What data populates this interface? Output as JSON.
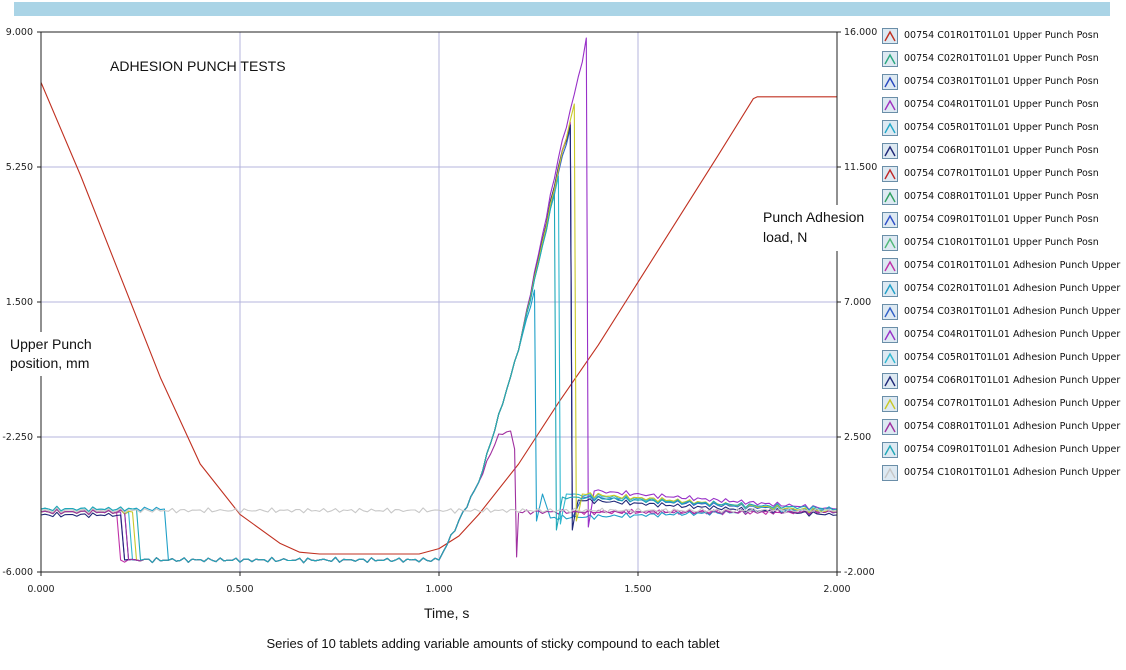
{
  "chart_data": {
    "type": "line",
    "title": "ADHESION PUNCH TESTS",
    "xlabel": "Time, s",
    "ylabel_left": "Upper Punch position, mm",
    "ylabel_right": "Punch Adhesion load, N",
    "xlim": [
      0,
      2
    ],
    "ylim_left": [
      -6,
      9
    ],
    "ylim_right": [
      -2,
      16
    ],
    "x_ticks": [
      "0.000",
      "0.500",
      "1.000",
      "1.500",
      "2.000"
    ],
    "y_left_ticks": [
      "9.000",
      "5.250",
      "1.500",
      "-2.250",
      "-6.000"
    ],
    "y_right_ticks": [
      "16.000",
      "11.500",
      "7.000",
      "2.500",
      "-2.000"
    ],
    "grid": true,
    "legend_position": "right",
    "series": [
      {
        "name": "00754 C01R01T01L01 Upper Punch Posn",
        "axis": "left",
        "color": "#c03020",
        "points": [
          [
            0,
            7.6
          ],
          [
            0.1,
            5.0
          ],
          [
            0.2,
            2.2
          ],
          [
            0.3,
            -0.6
          ],
          [
            0.4,
            -3.0
          ],
          [
            0.5,
            -4.4
          ],
          [
            0.6,
            -5.2
          ],
          [
            0.65,
            -5.45
          ],
          [
            0.7,
            -5.5
          ],
          [
            0.95,
            -5.5
          ],
          [
            1.0,
            -5.35
          ],
          [
            1.05,
            -5.0
          ],
          [
            1.1,
            -4.4
          ],
          [
            1.2,
            -3.0
          ],
          [
            1.3,
            -1.3
          ],
          [
            1.4,
            0.3
          ],
          [
            1.5,
            2.05
          ],
          [
            1.6,
            3.8
          ],
          [
            1.7,
            5.55
          ],
          [
            1.79,
            7.15
          ],
          [
            1.8,
            7.2
          ],
          [
            2.0,
            7.2
          ]
        ]
      },
      {
        "name": "00754 C02R01T01L01 Upper Punch Posn",
        "axis": "left",
        "color": "#2aa880"
      },
      {
        "name": "00754 C03R01T01L01 Upper Punch Posn",
        "axis": "left",
        "color": "#2848c0"
      },
      {
        "name": "00754 C04R01T01L01 Upper Punch Posn",
        "axis": "left",
        "color": "#a030c0"
      },
      {
        "name": "00754 C05R01T01L01 Upper Punch Posn",
        "axis": "left",
        "color": "#20a8c8"
      },
      {
        "name": "00754 C06R01T01L01 Upper Punch Posn",
        "axis": "left",
        "color": "#202878"
      },
      {
        "name": "00754 C07R01T01L01 Upper Punch Posn",
        "axis": "left",
        "color": "#c02828"
      },
      {
        "name": "00754 C08R01T01L01 Upper Punch Posn",
        "axis": "left",
        "color": "#30a060"
      },
      {
        "name": "00754 C09R01T01L01 Upper Punch Posn",
        "axis": "left",
        "color": "#3050c8"
      },
      {
        "name": "00754 C10R01T01L01 Upper Punch Posn",
        "axis": "left",
        "color": "#50b878"
      },
      {
        "name": "00754 C01R01T01L01 Adhesion Punch Upper",
        "axis": "right",
        "color": "#c030a8",
        "points": [
          [
            0,
            0
          ],
          [
            0.19,
            0
          ],
          [
            0.2,
            -1.6
          ],
          [
            1.0,
            -1.6
          ],
          [
            1.1,
            1.0
          ],
          [
            1.2,
            5.4
          ],
          [
            1.3,
            11.5
          ],
          [
            1.33,
            13.0
          ],
          [
            1.335,
            0
          ],
          [
            2.0,
            0
          ]
        ]
      },
      {
        "name": "00754 C02R01T01L01 Adhesion Punch Upper",
        "axis": "right",
        "color": "#20a0c8",
        "points": [
          [
            0,
            0.1
          ],
          [
            0.31,
            0.1
          ],
          [
            0.32,
            -1.6
          ],
          [
            1.0,
            -1.6
          ],
          [
            1.1,
            1.0
          ],
          [
            1.2,
            5.4
          ],
          [
            1.24,
            7.4
          ],
          [
            1.245,
            -0.3
          ],
          [
            1.26,
            0.6
          ],
          [
            1.28,
            -0.2
          ],
          [
            2.0,
            0.1
          ]
        ]
      },
      {
        "name": "00754 C03R01T01L01 Adhesion Punch Upper",
        "axis": "right",
        "color": "#3060c8",
        "points": [
          [
            0,
            0
          ],
          [
            0.21,
            0
          ],
          [
            0.22,
            -1.6
          ],
          [
            1.0,
            -1.6
          ],
          [
            1.1,
            1.0
          ],
          [
            1.2,
            5.4
          ],
          [
            1.3,
            11.3
          ],
          [
            1.33,
            12.8
          ],
          [
            1.335,
            -0.2
          ],
          [
            1.36,
            0.5
          ],
          [
            2.0,
            0
          ]
        ]
      },
      {
        "name": "00754 C04R01T01L01 Adhesion Punch Upper",
        "axis": "right",
        "color": "#9830c8",
        "points": [
          [
            0,
            0
          ],
          [
            0.2,
            0
          ],
          [
            0.21,
            -1.6
          ],
          [
            1.0,
            -1.6
          ],
          [
            1.1,
            1.0
          ],
          [
            1.2,
            5.4
          ],
          [
            1.3,
            11.8
          ],
          [
            1.36,
            15.0
          ],
          [
            1.37,
            15.8
          ],
          [
            1.375,
            -0.5
          ],
          [
            1.39,
            0.7
          ],
          [
            2.0,
            0.1
          ]
        ]
      },
      {
        "name": "00754 C05R01T01L01 Adhesion Punch Upper",
        "axis": "right",
        "color": "#30b8d0",
        "points": [
          [
            0,
            0
          ],
          [
            0.22,
            0
          ],
          [
            0.23,
            -1.6
          ],
          [
            1.0,
            -1.6
          ],
          [
            1.1,
            1.0
          ],
          [
            1.2,
            5.4
          ],
          [
            1.3,
            11.2
          ],
          [
            1.305,
            -0.4
          ],
          [
            1.32,
            0.6
          ],
          [
            2.0,
            0
          ]
        ]
      },
      {
        "name": "00754 C06R01T01L01 Adhesion Punch Upper",
        "axis": "right",
        "color": "#202878",
        "points": [
          [
            0,
            -0.1
          ],
          [
            0.2,
            -0.1
          ],
          [
            0.21,
            -1.6
          ],
          [
            1.0,
            -1.6
          ],
          [
            1.1,
            1.0
          ],
          [
            1.2,
            5.4
          ],
          [
            1.3,
            11.5
          ],
          [
            1.33,
            12.9
          ],
          [
            1.335,
            -0.6
          ],
          [
            1.35,
            0.4
          ],
          [
            2.0,
            -0.1
          ]
        ]
      },
      {
        "name": "00754 C07R01T01L01 Adhesion Punch Upper",
        "axis": "right",
        "color": "#c8c828",
        "points": [
          [
            0,
            0
          ],
          [
            0.23,
            0
          ],
          [
            0.24,
            -1.6
          ],
          [
            1.0,
            -1.6
          ],
          [
            1.1,
            1.0
          ],
          [
            1.2,
            5.4
          ],
          [
            1.3,
            11.4
          ],
          [
            1.34,
            13.6
          ],
          [
            1.345,
            -0.3
          ],
          [
            1.36,
            0.6
          ],
          [
            2.0,
            0
          ]
        ]
      },
      {
        "name": "00754 C08R01T01L01 Adhesion Punch Upper",
        "axis": "right",
        "color": "#a030a0",
        "points": [
          [
            0,
            0
          ],
          [
            0.21,
            0
          ],
          [
            0.22,
            -1.6
          ],
          [
            1.0,
            -1.6
          ],
          [
            1.1,
            1.0
          ],
          [
            1.15,
            2.6
          ],
          [
            1.18,
            2.7
          ],
          [
            1.19,
            2.1
          ],
          [
            1.195,
            -1.5
          ],
          [
            1.2,
            0
          ],
          [
            2.0,
            0
          ]
        ]
      },
      {
        "name": "00754 C09R01T01L01 Adhesion Punch Upper",
        "axis": "right",
        "color": "#20a8b8",
        "points": [
          [
            0,
            0.1
          ],
          [
            0.24,
            0.1
          ],
          [
            0.25,
            -1.6
          ],
          [
            1.0,
            -1.6
          ],
          [
            1.1,
            1.0
          ],
          [
            1.2,
            5.4
          ],
          [
            1.29,
            10.6
          ],
          [
            1.295,
            -0.6
          ],
          [
            1.31,
            0.5
          ],
          [
            2.0,
            0.1
          ]
        ]
      },
      {
        "name": "00754 C10R01T01L01 Adhesion Punch Upper",
        "axis": "right",
        "color": "#c8c8c8",
        "points": [
          [
            0,
            0.05
          ],
          [
            2.0,
            0.05
          ]
        ]
      }
    ]
  },
  "caption": "Series of 10 tablets adding variable amounts of sticky compound to each tablet"
}
